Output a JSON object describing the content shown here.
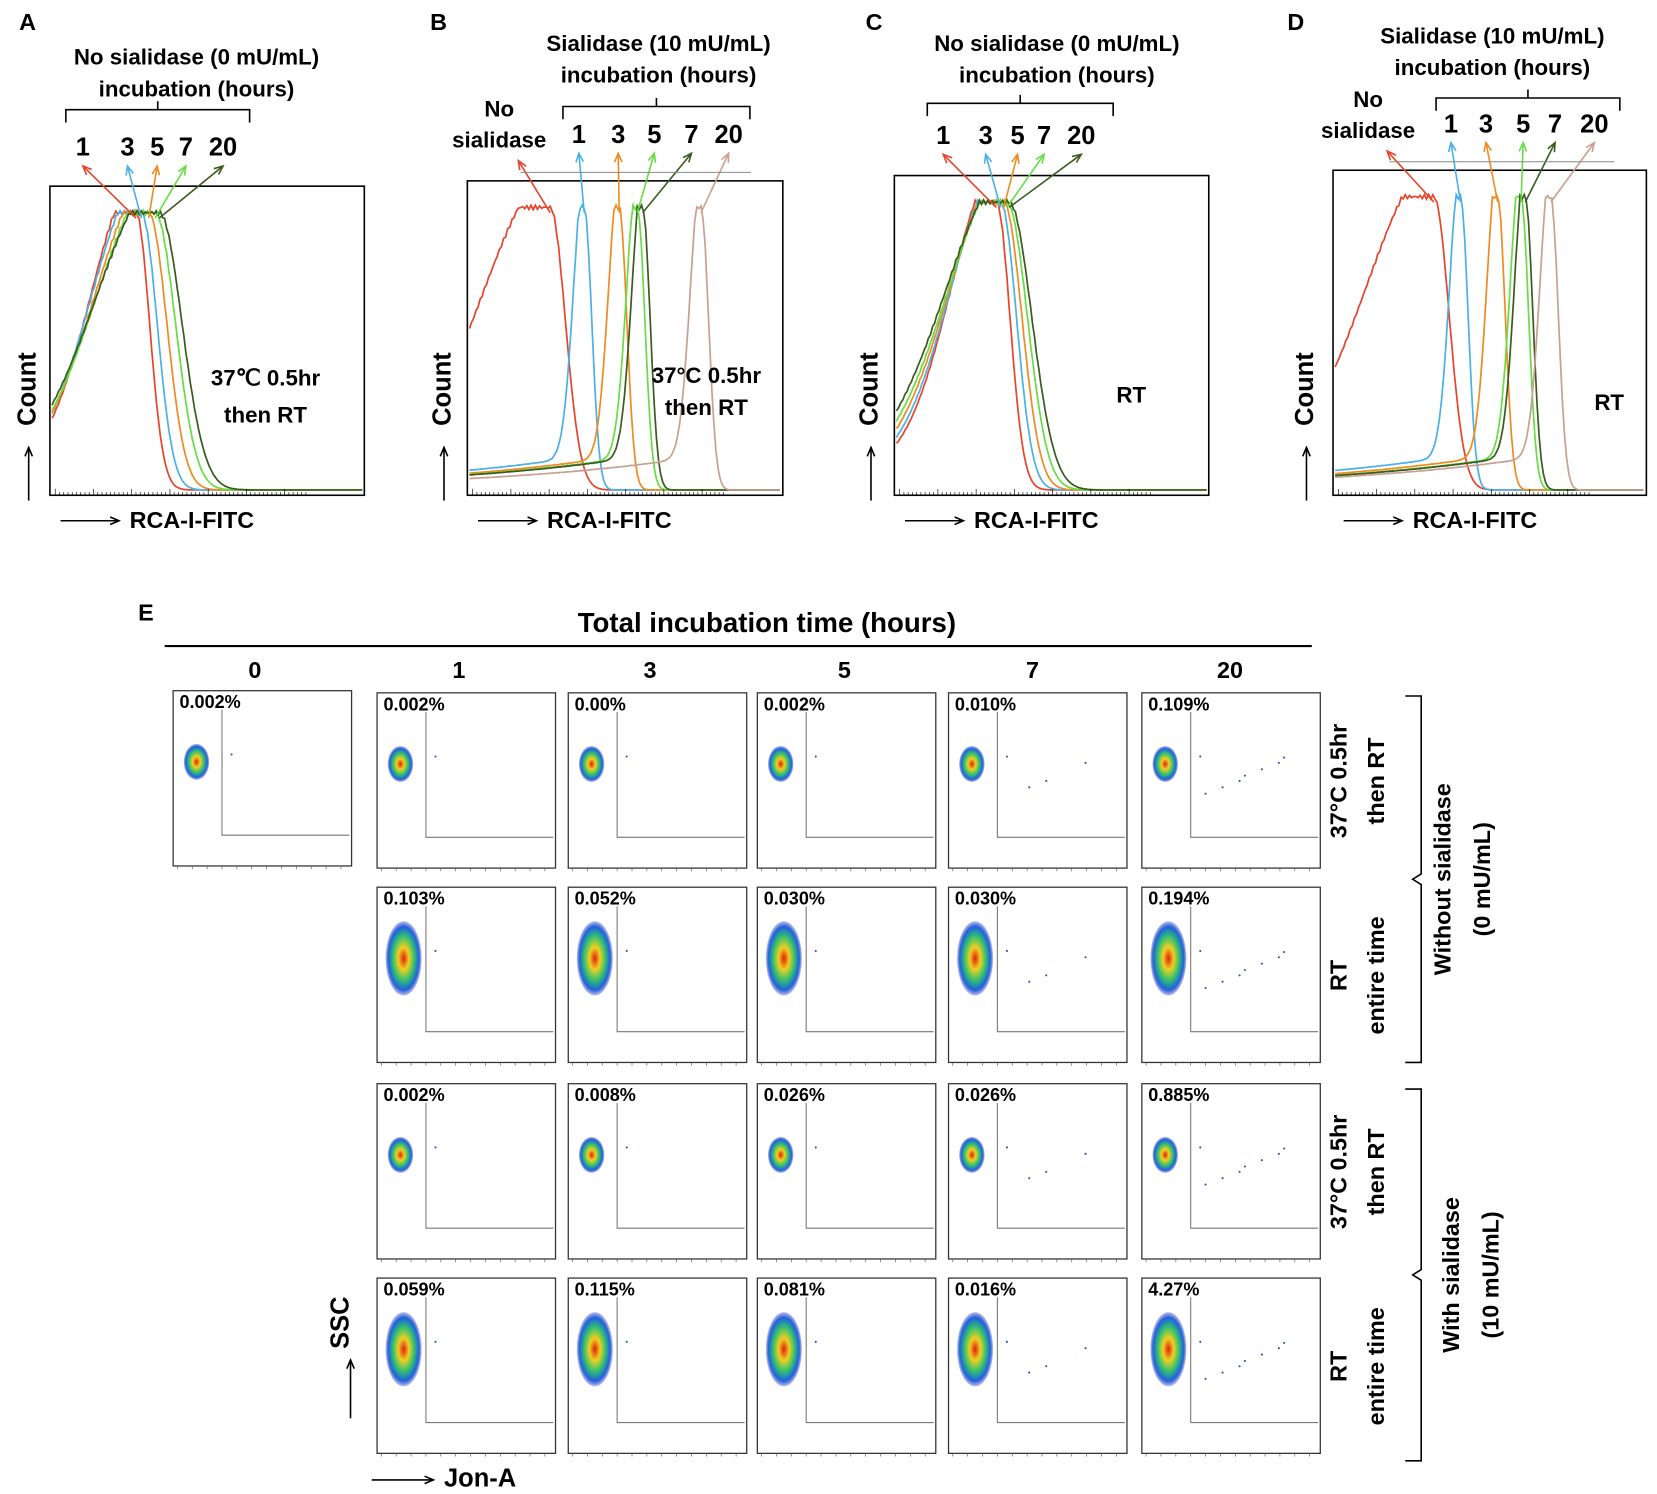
{
  "panels": [
    {
      "label": "A",
      "header": [
        "No sialidase (0 mU/mL)",
        "incubation (hours)"
      ],
      "times": [
        "1",
        "3",
        "5",
        "7",
        "20"
      ],
      "condition": [
        "37℃ 0.5hr",
        "then RT"
      ],
      "x_label": "RCA-I-FITC",
      "y_label": "Count"
    },
    {
      "label": "B",
      "header": [
        "Sialidase (10 mU/mL)",
        "incubation (hours)"
      ],
      "control": [
        "No",
        "sialidase"
      ],
      "times": [
        "1",
        "3",
        "5",
        "7",
        "20"
      ],
      "condition": [
        "37°C 0.5hr",
        "then RT"
      ],
      "x_label": "RCA-I-FITC",
      "y_label": "Count"
    },
    {
      "label": "C",
      "header": [
        "No sialidase (0 mU/mL)",
        "incubation (hours)"
      ],
      "times": [
        "1",
        "3",
        "5",
        "7",
        "20"
      ],
      "condition": [
        "RT"
      ],
      "x_label": "RCA-I-FITC",
      "y_label": "Count"
    },
    {
      "label": "D",
      "header": [
        "Sialidase (10 mU/mL)",
        "incubation (hours)"
      ],
      "control": [
        "No",
        "sialidase"
      ],
      "times": [
        "1",
        "3",
        "5",
        "7",
        "20"
      ],
      "condition": [
        "RT"
      ],
      "x_label": "RCA-I-FITC",
      "y_label": "Count"
    }
  ],
  "panel_e": {
    "label": "E",
    "title": "Total incubation time (hours)",
    "columns": [
      "0",
      "1",
      "3",
      "5",
      "7",
      "20"
    ],
    "control_percent": "0.002%",
    "rows": [
      {
        "condition": [
          "37°C 0.5hr",
          "then RT"
        ],
        "percents": [
          "0.002%",
          "0.00%",
          "0.002%",
          "0.010%",
          "0.109%"
        ]
      },
      {
        "condition": [
          "RT",
          "entire time"
        ],
        "percents": [
          "0.103%",
          "0.052%",
          "0.030%",
          "0.030%",
          "0.194%"
        ]
      },
      {
        "condition": [
          "37°C 0.5hr",
          "then RT"
        ],
        "percents": [
          "0.002%",
          "0.008%",
          "0.026%",
          "0.026%",
          "0.885%"
        ]
      },
      {
        "condition": [
          "RT",
          "entire time"
        ],
        "percents": [
          "0.059%",
          "0.115%",
          "0.081%",
          "0.016%",
          "4.27%"
        ]
      }
    ],
    "groups": [
      [
        "Without  sialidase",
        "(0 mU/mL)"
      ],
      [
        "With sialidase",
        "(10 mU/mL)"
      ]
    ],
    "y_label": "SSC",
    "x_label": "Jon-A"
  }
}
